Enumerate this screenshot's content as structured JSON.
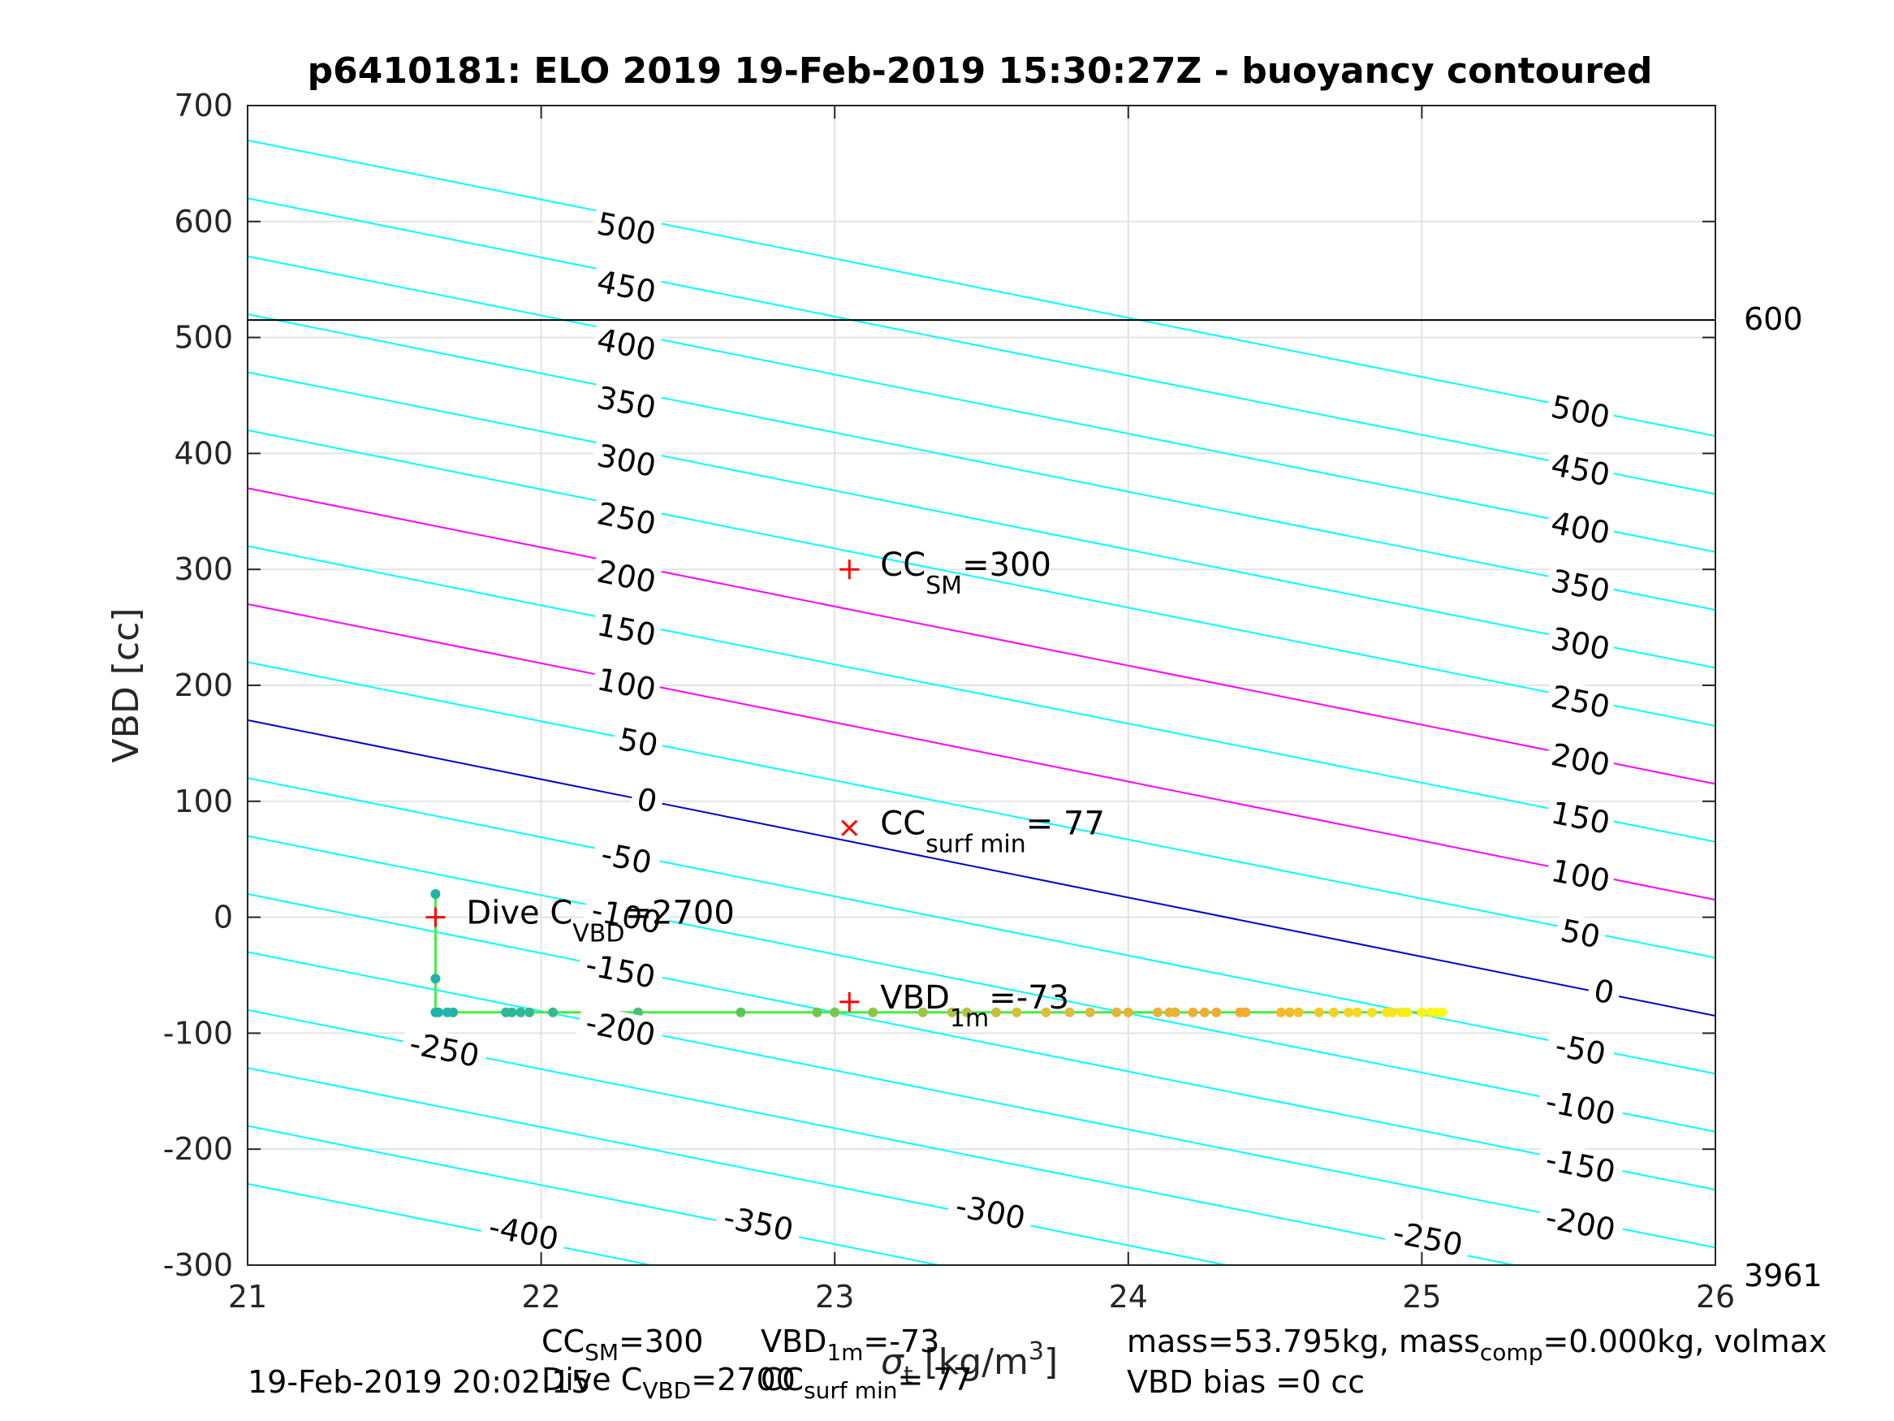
{
  "chart_data": {
    "type": "scatter",
    "title": "p6410181: ELO 2019 19-Feb-2019 15:30:27Z - buoyancy contoured",
    "xlabel": "σ_t [kg/m³]",
    "xlabel_main": "σ",
    "xlabel_sub": "t",
    "xlabel_unit": " [kg/m",
    "xlabel_sup": "3",
    "xlabel_close": "]",
    "ylabel": "VBD [cc]",
    "xlim": [
      21,
      26
    ],
    "ylim": [
      -300,
      700
    ],
    "grid": true,
    "x_ticks": [
      "21",
      "22",
      "23",
      "24",
      "25",
      "26"
    ],
    "y_ticks": [
      "-300",
      "-200",
      "-100",
      "0",
      "100",
      "200",
      "300",
      "400",
      "500",
      "600",
      "700"
    ],
    "contour_slope": -51,
    "contours": [
      {
        "level": -400,
        "color": "#00ffff"
      },
      {
        "level": -350,
        "color": "#00ffff"
      },
      {
        "level": -300,
        "color": "#00ffff"
      },
      {
        "level": -250,
        "color": "#00ffff"
      },
      {
        "level": -200,
        "color": "#00ffff"
      },
      {
        "level": -150,
        "color": "#00ffff"
      },
      {
        "level": -100,
        "color": "#00ffff"
      },
      {
        "level": -50,
        "color": "#00ffff"
      },
      {
        "level": 0,
        "color": "#0000cc"
      },
      {
        "level": 50,
        "color": "#00ffff"
      },
      {
        "level": 100,
        "color": "#ff00ff"
      },
      {
        "level": 150,
        "color": "#00ffff"
      },
      {
        "level": 200,
        "color": "#ff00ff"
      },
      {
        "level": 250,
        "color": "#00ffff"
      },
      {
        "level": 300,
        "color": "#00ffff"
      },
      {
        "level": 350,
        "color": "#00ffff"
      },
      {
        "level": 400,
        "color": "#00ffff"
      },
      {
        "level": 450,
        "color": "#00ffff"
      },
      {
        "level": 500,
        "color": "#00ffff"
      }
    ],
    "contour_labels_left": [
      {
        "text": "500",
        "x": 22.29,
        "y": 593
      },
      {
        "text": "450",
        "x": 22.29,
        "y": 543
      },
      {
        "text": "400",
        "x": 22.29,
        "y": 493
      },
      {
        "text": "350",
        "x": 22.29,
        "y": 443
      },
      {
        "text": "300",
        "x": 22.29,
        "y": 393
      },
      {
        "text": "250",
        "x": 22.29,
        "y": 343
      },
      {
        "text": "200",
        "x": 22.29,
        "y": 293
      },
      {
        "text": "150",
        "x": 22.29,
        "y": 247
      },
      {
        "text": "100",
        "x": 22.29,
        "y": 200
      },
      {
        "text": "50",
        "x": 22.33,
        "y": 150
      },
      {
        "text": "0",
        "x": 22.36,
        "y": 100
      },
      {
        "text": "-50",
        "x": 22.29,
        "y": 50
      },
      {
        "text": "-100",
        "x": 22.29,
        "y": 0
      },
      {
        "text": "-150",
        "x": 22.27,
        "y": -47
      },
      {
        "text": "-200",
        "x": 22.27,
        "y": -97
      },
      {
        "text": "-250",
        "x": 21.67,
        "y": -115
      },
      {
        "text": "-300",
        "x": 23.53,
        "y": -255
      },
      {
        "text": "-350",
        "x": 22.74,
        "y": -265
      },
      {
        "text": "-400",
        "x": 21.94,
        "y": -273
      }
    ],
    "contour_labels_right": [
      {
        "text": "500",
        "x": 25.54,
        "y": 435
      },
      {
        "text": "450",
        "x": 25.54,
        "y": 385
      },
      {
        "text": "400",
        "x": 25.54,
        "y": 335
      },
      {
        "text": "350",
        "x": 25.54,
        "y": 285
      },
      {
        "text": "300",
        "x": 25.54,
        "y": 235
      },
      {
        "text": "250",
        "x": 25.54,
        "y": 185
      },
      {
        "text": "200",
        "x": 25.54,
        "y": 135
      },
      {
        "text": "150",
        "x": 25.54,
        "y": 85
      },
      {
        "text": "100",
        "x": 25.54,
        "y": 35
      },
      {
        "text": "50",
        "x": 25.54,
        "y": -15
      },
      {
        "text": "0",
        "x": 25.62,
        "y": -65
      },
      {
        "text": "-50",
        "x": 25.54,
        "y": -115
      },
      {
        "text": "-100",
        "x": 25.54,
        "y": -165
      },
      {
        "text": "-150",
        "x": 25.54,
        "y": -215
      },
      {
        "text": "-200",
        "x": 25.54,
        "y": -265
      },
      {
        "text": "-250",
        "x": 25.02,
        "y": -278
      }
    ],
    "hline": {
      "y": 515,
      "label_right": "600",
      "color": "#000000"
    },
    "bottom_right_label": "3961",
    "markers": [
      {
        "symbol": "+",
        "x": 23.05,
        "y": 300,
        "label": "CC",
        "sub": "SM",
        "suffix": "=300",
        "color": "#ff0000"
      },
      {
        "symbol": "x",
        "x": 23.05,
        "y": 77,
        "label": "CC",
        "sub": "surf min",
        "suffix": "= 77",
        "color": "#ff0000"
      },
      {
        "symbol": "+",
        "x": 23.05,
        "y": -73,
        "label": "VBD",
        "sub": "1m",
        "suffix": "=-73",
        "color": "#ff0000"
      },
      {
        "symbol": "+",
        "x": 21.64,
        "y": 0,
        "label": "Dive C",
        "sub": "VBD",
        "suffix": "=2700",
        "color": "#ff0000"
      }
    ],
    "profile": {
      "color": "#44ee44",
      "x": [
        21.64,
        21.64,
        21.64,
        21.66,
        21.87,
        22.0,
        22.5,
        23.0,
        23.5,
        24.0,
        24.5,
        25.0,
        25.07
      ],
      "y": [
        20,
        -30,
        -82,
        -82,
        -82,
        -82,
        -82,
        -82,
        -82,
        -82,
        -82,
        -82,
        -82
      ]
    },
    "points": {
      "x": [
        21.64,
        21.64,
        21.64,
        21.65,
        21.68,
        21.7,
        21.88,
        21.9,
        21.93,
        21.96,
        22.04,
        22.33,
        22.68,
        22.94,
        23.0,
        23.13,
        23.3,
        23.4,
        23.45,
        23.55,
        23.62,
        23.72,
        23.8,
        23.87,
        23.96,
        24.0,
        24.1,
        24.14,
        24.16,
        24.22,
        24.26,
        24.3,
        24.38,
        24.4,
        24.52,
        24.55,
        24.58,
        24.65,
        24.7,
        24.75,
        24.78,
        24.83,
        24.88,
        24.9,
        24.93,
        24.95,
        25.0,
        25.03,
        25.05,
        25.07
      ],
      "y": [
        20,
        -53,
        -82,
        -82,
        -82,
        -82,
        -82,
        -82,
        -82,
        -82,
        -82,
        -82,
        -82,
        -82,
        -82,
        -82,
        -82,
        -82,
        -82,
        -82,
        -82,
        -82,
        -82,
        -82,
        -82,
        -82,
        -82,
        -82,
        -82,
        -82,
        -82,
        -82,
        -82,
        -82,
        -82,
        -82,
        -82,
        -82,
        -82,
        -82,
        -82,
        -82,
        -82,
        -82,
        -82,
        -82,
        -82,
        -82,
        -82,
        -82
      ]
    }
  },
  "footer": {
    "line1_left": "CC",
    "line1_left_sub": "SM",
    "line1_left_rest": "=300",
    "line1_mid": "VBD",
    "line1_mid_sub": "1m",
    "line1_mid_rest": "=-73",
    "line1_right": "mass=53.795kg, mass",
    "line1_right_sub": "comp",
    "line1_right_rest": "=0.000kg, volmax",
    "line2_date": "19-Feb-2019 20:02:15",
    "line2_dive": "Dive C",
    "line2_dive_sub": "VBD",
    "line2_dive_rest": "=2700",
    "line2_cc": "CC",
    "line2_cc_sub": "surf min",
    "line2_cc_rest": "= 77",
    "line2_bias": "VBD bias =0 cc"
  }
}
